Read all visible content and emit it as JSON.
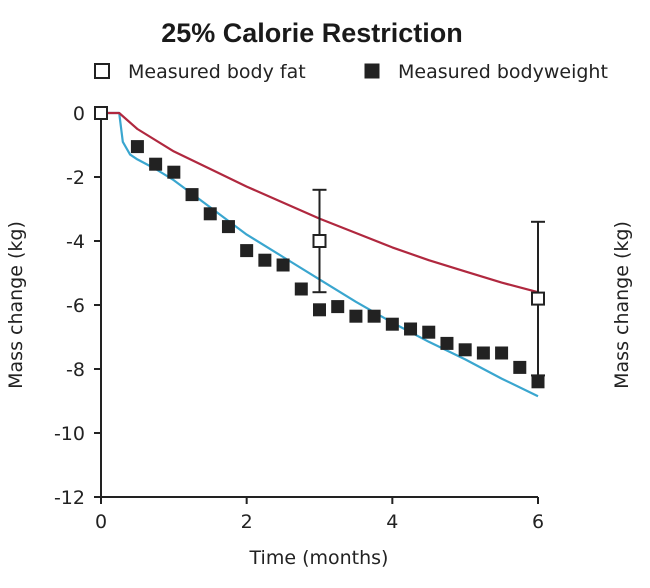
{
  "chart_data": {
    "type": "line",
    "title": "25% Calorie Restriction",
    "xlabel": "Time (months)",
    "ylabel": "Mass change (kg)",
    "ylabel_right": "Mass change (kg)",
    "xlim": [
      0,
      6
    ],
    "ylim": [
      -12,
      0
    ],
    "x_ticks": [
      0,
      2,
      4,
      6
    ],
    "y_ticks": [
      0,
      -2,
      -4,
      -6,
      -8,
      -10,
      -12
    ],
    "grid": false,
    "legend_position": "top",
    "legend": [
      {
        "name": "Measured body fat",
        "marker": "open-square"
      },
      {
        "name": "Measured bodyweight",
        "marker": "filled-square"
      }
    ],
    "series": [
      {
        "kind": "curve",
        "color": "#3aa6cf",
        "x": [
          0,
          0.25,
          0.3,
          0.4,
          0.5,
          0.75,
          1,
          1.5,
          2,
          2.5,
          3,
          3.5,
          4,
          4.5,
          5,
          5.5,
          6
        ],
        "y": [
          0,
          0,
          -0.9,
          -1.3,
          -1.45,
          -1.75,
          -2.1,
          -2.95,
          -3.8,
          -4.5,
          -5.2,
          -5.9,
          -6.55,
          -7.15,
          -7.7,
          -8.3,
          -8.85
        ]
      },
      {
        "kind": "curve",
        "color": "#b0283f",
        "x": [
          0,
          0.25,
          0.5,
          1,
          1.5,
          2,
          2.5,
          3,
          3.5,
          4,
          4.5,
          5,
          5.5,
          6
        ],
        "y": [
          0,
          0,
          -0.5,
          -1.2,
          -1.75,
          -2.3,
          -2.8,
          -3.3,
          -3.75,
          -4.2,
          -4.6,
          -4.95,
          -5.3,
          -5.6
        ]
      },
      {
        "kind": "markers",
        "name": "Measured bodyweight",
        "marker": "filled-square",
        "color": "#222222",
        "x": [
          0.5,
          0.75,
          1,
          1.25,
          1.5,
          1.75,
          2,
          2.25,
          2.5,
          2.75,
          3,
          3.25,
          3.5,
          3.75,
          4,
          4.25,
          4.5,
          4.75,
          5,
          5.25,
          5.5,
          5.75,
          6
        ],
        "y": [
          -1.05,
          -1.6,
          -1.85,
          -2.55,
          -3.15,
          -3.55,
          -4.3,
          -4.6,
          -4.75,
          -5.5,
          -6.15,
          -6.05,
          -6.35,
          -6.35,
          -6.6,
          -6.75,
          -6.85,
          -7.2,
          -7.4,
          -7.5,
          -7.5,
          -7.95,
          -8.4
        ]
      },
      {
        "kind": "markers",
        "name": "Measured body fat",
        "marker": "open-square",
        "color": "#222222",
        "x": [
          0,
          3,
          6
        ],
        "y": [
          0,
          -4.0,
          -5.8
        ],
        "error": [
          0,
          1.6,
          2.4
        ]
      }
    ]
  }
}
